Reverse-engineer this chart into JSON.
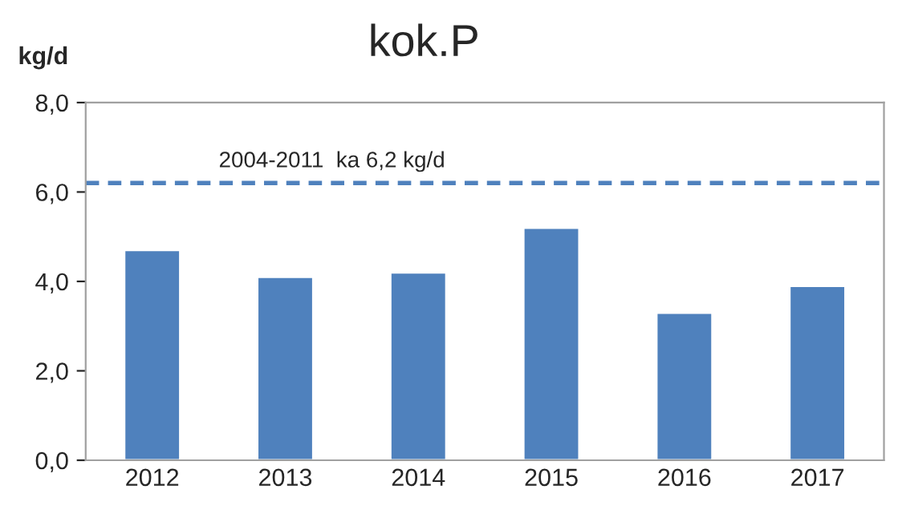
{
  "chart_data": {
    "type": "bar",
    "title": "kok.P",
    "ylabel": "kg/d",
    "categories": [
      "2012",
      "2013",
      "2014",
      "2015",
      "2016",
      "2017"
    ],
    "values": [
      4.7,
      4.1,
      4.2,
      5.2,
      3.3,
      3.9
    ],
    "color": "#4f81bd",
    "ylim": [
      0,
      8
    ],
    "yticks": [
      {
        "value": 0,
        "label": "0,0"
      },
      {
        "value": 2,
        "label": "2,0"
      },
      {
        "value": 4,
        "label": "4,0"
      },
      {
        "value": 6,
        "label": "6,0"
      },
      {
        "value": 8,
        "label": "8,0"
      }
    ],
    "ref_lines": [
      {
        "axis": "y",
        "value": 6.2,
        "label": "2004-2011  ka 6,2 kg/d",
        "color": "#4f81bd",
        "line_style": "dashed"
      }
    ],
    "grid": false,
    "legend": false
  }
}
